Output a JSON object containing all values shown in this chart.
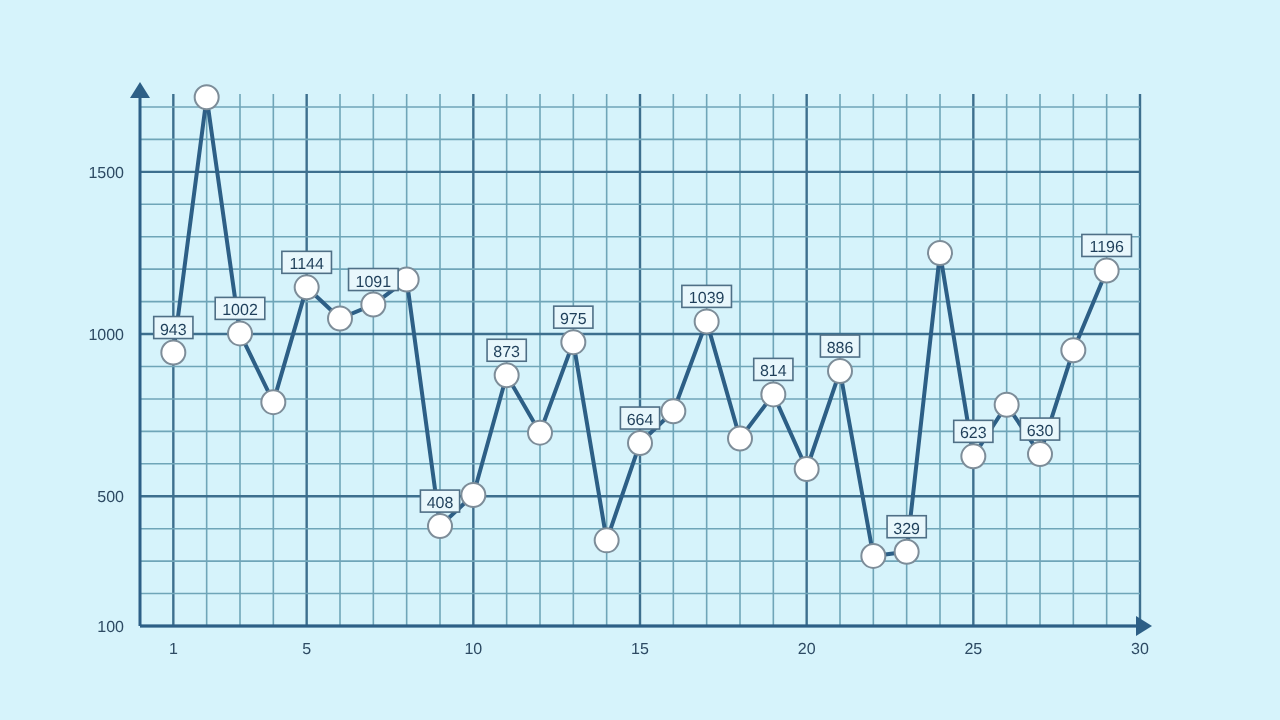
{
  "chart_data": {
    "type": "line",
    "x": [
      1,
      2,
      3,
      4,
      5,
      6,
      7,
      8,
      9,
      10,
      11,
      12,
      13,
      14,
      15,
      16,
      17,
      18,
      19,
      20,
      21,
      22,
      23,
      24,
      25,
      26,
      27,
      28,
      29
    ],
    "series": [
      {
        "color": "#2d5f86",
        "values": [
          943,
          1730,
          1002,
          790,
          1144,
          1048,
          1091,
          1168,
          408,
          504,
          873,
          696,
          975,
          364,
          664,
          762,
          1039,
          678,
          814,
          584,
          886,
          316,
          329,
          1250,
          623,
          782,
          630,
          950,
          1196
        ],
        "value_labels": [
          "943",
          null,
          "1002",
          null,
          "1144",
          null,
          "1091",
          null,
          "408",
          null,
          "873",
          null,
          "975",
          null,
          "664",
          null,
          "1039",
          null,
          "814",
          null,
          "886",
          null,
          "329",
          null,
          "623",
          null,
          "630",
          null,
          "1196"
        ]
      }
    ],
    "xlim": [
      0,
      30
    ],
    "ylim": [
      100,
      1740
    ],
    "xticks": [
      {
        "value": 0,
        "label": null
      },
      1,
      {
        "value": 2,
        "label": null
      },
      {
        "value": 3,
        "label": null
      },
      {
        "value": 4,
        "label": null
      },
      5,
      {
        "value": 6,
        "label": null
      },
      {
        "value": 7,
        "label": null
      },
      {
        "value": 8,
        "label": null
      },
      {
        "value": 9,
        "label": null
      },
      10,
      {
        "value": 11,
        "label": null
      },
      {
        "value": 12,
        "label": null
      },
      {
        "value": 13,
        "label": null
      },
      {
        "value": 14,
        "label": null
      },
      15,
      {
        "value": 16,
        "label": null
      },
      {
        "value": 17,
        "label": null
      },
      {
        "value": 18,
        "label": null
      },
      {
        "value": 19,
        "label": null
      },
      20,
      {
        "value": 21,
        "label": null
      },
      {
        "value": 22,
        "label": null
      },
      {
        "value": 23,
        "label": null
      },
      {
        "value": 24,
        "label": null
      },
      25,
      {
        "value": 26,
        "label": null
      },
      {
        "value": 27,
        "label": null
      },
      {
        "value": 28,
        "label": null
      },
      {
        "value": 29,
        "label": null
      },
      30
    ],
    "yticks": [
      100,
      {
        "value": 200,
        "label": null
      },
      {
        "value": 300,
        "label": null
      },
      {
        "value": 400,
        "label": null
      },
      500,
      {
        "value": 600,
        "label": null
      },
      {
        "value": 700,
        "label": null
      },
      {
        "value": 800,
        "label": null
      },
      {
        "value": 900,
        "label": null
      },
      1000,
      {
        "value": 1100,
        "label": null
      },
      {
        "value": 1200,
        "label": null
      },
      {
        "value": 1300,
        "label": null
      },
      {
        "value": 1400,
        "label": null
      },
      1500,
      {
        "value": 1600,
        "label": null
      },
      {
        "value": 1700,
        "label": null
      }
    ],
    "grid": true,
    "marker": "circle",
    "line_style": "solid"
  }
}
